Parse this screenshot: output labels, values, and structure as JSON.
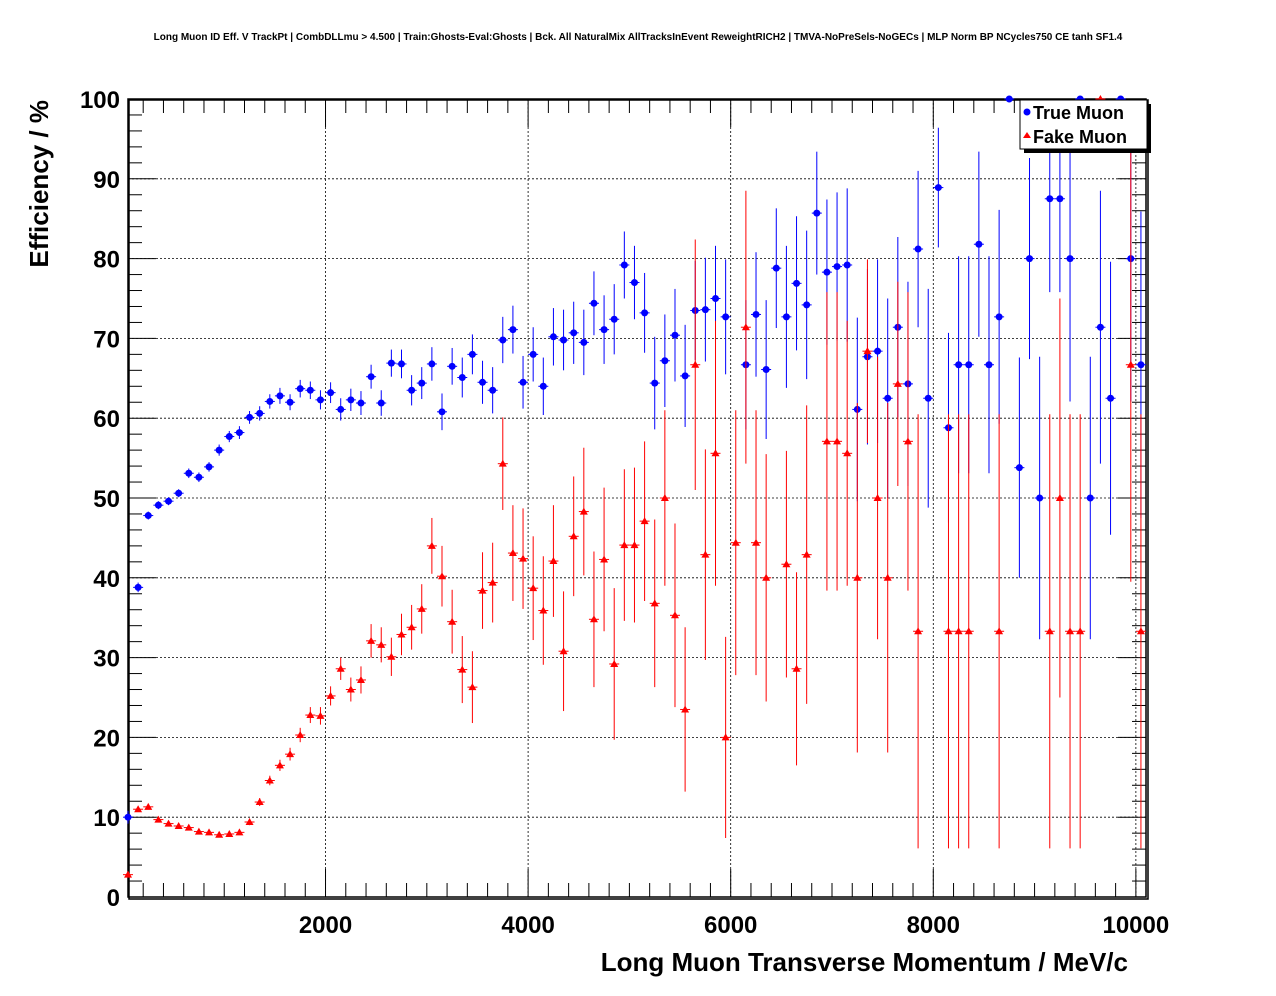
{
  "chart_data": {
    "type": "scatter",
    "title": "Long Muon ID Eff. V TrackPt | CombDLLmu > 4.500 | Train:Ghosts-Eval:Ghosts | Bck. All NaturalMix AllTracksInEvent ReweightRICH2 | TMVA-NoPreSels-NoGECs | MLP Norm BP NCycles750 CE tanh SF1.4",
    "xlabel": "Long Muon Transverse Momentum / MeV/c",
    "ylabel": "Efficiency / %",
    "xlim": [
      50,
      10100
    ],
    "ylim": [
      0,
      100
    ],
    "xticks": [
      2000,
      4000,
      6000,
      8000,
      10000
    ],
    "xtick_labels": [
      "2000",
      "4000",
      "6000",
      "8000",
      "10000"
    ],
    "yticks": [
      0,
      10,
      20,
      30,
      40,
      50,
      60,
      70,
      80,
      90,
      100
    ],
    "ytick_labels": [
      "0",
      "10",
      "20",
      "30",
      "40",
      "50",
      "60",
      "70",
      "80",
      "90",
      "100"
    ],
    "grid": true,
    "legend_position": "top-right",
    "series": [
      {
        "name": "True Muon",
        "color": "#0000ff",
        "marker": "circle",
        "points": [
          [
            50,
            10.0,
            0.8
          ],
          [
            150,
            38.8,
            0.6
          ],
          [
            250,
            47.8,
            0.5
          ],
          [
            350,
            49.1,
            0.5
          ],
          [
            450,
            49.6,
            0.5
          ],
          [
            550,
            50.6,
            0.5
          ],
          [
            650,
            53.1,
            0.6
          ],
          [
            750,
            52.6,
            0.6
          ],
          [
            850,
            53.9,
            0.6
          ],
          [
            950,
            56.0,
            0.7
          ],
          [
            1050,
            57.7,
            0.7
          ],
          [
            1150,
            58.2,
            0.8
          ],
          [
            1250,
            60.1,
            0.8
          ],
          [
            1350,
            60.6,
            0.9
          ],
          [
            1450,
            62.1,
            0.9
          ],
          [
            1550,
            62.8,
            1.0
          ],
          [
            1650,
            62.0,
            1.0
          ],
          [
            1750,
            63.7,
            1.1
          ],
          [
            1850,
            63.5,
            1.1
          ],
          [
            1950,
            62.3,
            1.2
          ],
          [
            2050,
            63.2,
            1.3
          ],
          [
            2150,
            61.1,
            1.4
          ],
          [
            2250,
            62.3,
            1.4
          ],
          [
            2350,
            61.9,
            1.5
          ],
          [
            2450,
            65.2,
            1.5
          ],
          [
            2550,
            61.9,
            1.6
          ],
          [
            2650,
            66.9,
            1.7
          ],
          [
            2750,
            66.8,
            1.8
          ],
          [
            2850,
            63.5,
            1.9
          ],
          [
            2950,
            64.4,
            2.0
          ],
          [
            3050,
            66.8,
            2.1
          ],
          [
            3150,
            60.8,
            2.3
          ],
          [
            3250,
            66.5,
            2.3
          ],
          [
            3350,
            65.1,
            2.5
          ],
          [
            3450,
            68.0,
            2.5
          ],
          [
            3550,
            64.5,
            2.7
          ],
          [
            3650,
            63.5,
            2.9
          ],
          [
            3750,
            69.8,
            2.9
          ],
          [
            3850,
            71.1,
            3.0
          ],
          [
            3950,
            64.5,
            3.3
          ],
          [
            4050,
            68.0,
            3.4
          ],
          [
            4150,
            64.0,
            3.6
          ],
          [
            4250,
            70.2,
            3.6
          ],
          [
            4350,
            69.8,
            3.8
          ],
          [
            4450,
            70.7,
            3.9
          ],
          [
            4550,
            69.5,
            4.1
          ],
          [
            4650,
            74.4,
            4.0
          ],
          [
            4750,
            71.1,
            4.3
          ],
          [
            4850,
            72.4,
            4.4
          ],
          [
            4950,
            79.2,
            4.2
          ],
          [
            5050,
            77.0,
            4.6
          ],
          [
            5150,
            73.2,
            5.0
          ],
          [
            5250,
            64.4,
            5.8
          ],
          [
            5350,
            67.2,
            5.8
          ],
          [
            5450,
            70.4,
            5.8
          ],
          [
            5550,
            65.3,
            6.4
          ],
          [
            5650,
            73.5,
            6.2
          ],
          [
            5750,
            73.6,
            6.5
          ],
          [
            5850,
            75.0,
            6.6
          ],
          [
            5950,
            72.7,
            7.2
          ],
          [
            6150,
            66.7,
            8.1
          ],
          [
            6250,
            73.0,
            7.8
          ],
          [
            6350,
            66.1,
            8.7
          ],
          [
            6450,
            78.8,
            7.5
          ],
          [
            6550,
            72.7,
            8.9
          ],
          [
            6650,
            76.9,
            8.4
          ],
          [
            6750,
            74.2,
            9.3
          ],
          [
            6850,
            85.7,
            7.7
          ],
          [
            6950,
            78.3,
            9.1
          ],
          [
            7050,
            79.0,
            9.3
          ],
          [
            7150,
            79.2,
            9.6
          ],
          [
            7250,
            61.1,
            11.5
          ],
          [
            7350,
            67.7,
            11.0
          ],
          [
            7450,
            68.4,
            11.5
          ],
          [
            7550,
            62.5,
            12.5
          ],
          [
            7650,
            71.4,
            11.3
          ],
          [
            7750,
            64.3,
            12.8
          ],
          [
            7850,
            81.2,
            9.8
          ],
          [
            7950,
            62.5,
            13.7
          ],
          [
            8050,
            88.9,
            7.5
          ],
          [
            8150,
            58.8,
            11.9
          ],
          [
            8250,
            66.7,
            13.6
          ],
          [
            8350,
            66.7,
            13.6
          ],
          [
            8450,
            81.8,
            11.6
          ],
          [
            8550,
            66.7,
            13.6
          ],
          [
            8650,
            72.7,
            13.4
          ],
          [
            8750,
            100.0,
            0.0
          ],
          [
            8850,
            53.8,
            13.8
          ],
          [
            8950,
            80.0,
            12.6
          ],
          [
            9050,
            50.0,
            17.7
          ],
          [
            9150,
            87.5,
            11.7
          ],
          [
            9250,
            87.5,
            11.7
          ],
          [
            9350,
            80.0,
            17.9
          ],
          [
            9450,
            100.0,
            0.0
          ],
          [
            9550,
            50.0,
            17.7
          ],
          [
            9650,
            71.4,
            17.1
          ],
          [
            9750,
            62.5,
            17.1
          ],
          [
            9850,
            100.0,
            0.0
          ],
          [
            9950,
            80.0,
            17.9
          ],
          [
            10050,
            66.7,
            19.2
          ]
        ]
      },
      {
        "name": "Fake Muon",
        "color": "#ff0000",
        "marker": "triangle",
        "points": [
          [
            50,
            2.8,
            0.2
          ],
          [
            150,
            11.0,
            0.3
          ],
          [
            250,
            11.3,
            0.3
          ],
          [
            350,
            9.7,
            0.3
          ],
          [
            450,
            9.2,
            0.3
          ],
          [
            550,
            8.9,
            0.3
          ],
          [
            650,
            8.7,
            0.3
          ],
          [
            750,
            8.2,
            0.3
          ],
          [
            850,
            8.1,
            0.3
          ],
          [
            950,
            7.8,
            0.3
          ],
          [
            1050,
            7.9,
            0.3
          ],
          [
            1150,
            8.1,
            0.3
          ],
          [
            1250,
            9.4,
            0.4
          ],
          [
            1350,
            11.9,
            0.5
          ],
          [
            1450,
            14.6,
            0.6
          ],
          [
            1550,
            16.5,
            0.7
          ],
          [
            1650,
            17.9,
            0.8
          ],
          [
            1750,
            20.3,
            0.9
          ],
          [
            1850,
            22.8,
            1.0
          ],
          [
            1950,
            22.7,
            1.1
          ],
          [
            2050,
            25.2,
            1.2
          ],
          [
            2150,
            28.6,
            1.4
          ],
          [
            2250,
            26.0,
            1.5
          ],
          [
            2350,
            27.2,
            1.7
          ],
          [
            2450,
            32.1,
            2.1
          ],
          [
            2550,
            31.6,
            2.2
          ],
          [
            2650,
            30.1,
            2.4
          ],
          [
            2750,
            32.9,
            2.6
          ],
          [
            2850,
            33.8,
            2.8
          ],
          [
            2950,
            36.1,
            3.1
          ],
          [
            3050,
            44.0,
            3.5
          ],
          [
            3150,
            40.2,
            3.8
          ],
          [
            3250,
            34.5,
            4.0
          ],
          [
            3350,
            28.5,
            4.2
          ],
          [
            3450,
            26.3,
            4.5
          ],
          [
            3550,
            38.4,
            4.8
          ],
          [
            3650,
            39.4,
            5.0
          ],
          [
            3750,
            54.3,
            5.8
          ],
          [
            3850,
            43.1,
            6.0
          ],
          [
            3950,
            42.4,
            6.3
          ],
          [
            4050,
            38.7,
            6.5
          ],
          [
            4150,
            35.9,
            6.8
          ],
          [
            4250,
            42.1,
            7.0
          ],
          [
            4350,
            30.8,
            7.5
          ],
          [
            4450,
            45.2,
            7.5
          ],
          [
            4550,
            48.3,
            8.0
          ],
          [
            4650,
            34.8,
            8.5
          ],
          [
            4750,
            42.3,
            9.0
          ],
          [
            4850,
            29.2,
            9.5
          ],
          [
            4950,
            44.1,
            9.5
          ],
          [
            5050,
            44.1,
            9.7
          ],
          [
            5150,
            47.1,
            10.0
          ],
          [
            5250,
            36.8,
            10.5
          ],
          [
            5350,
            50.0,
            11.0
          ],
          [
            5450,
            35.3,
            11.5
          ],
          [
            5550,
            23.5,
            10.3
          ],
          [
            5650,
            66.7,
            15.7
          ],
          [
            5750,
            42.9,
            13.2
          ],
          [
            5850,
            55.6,
            16.6
          ],
          [
            5950,
            20.0,
            12.6
          ],
          [
            6050,
            44.4,
            16.6
          ],
          [
            6150,
            71.4,
            17.1
          ],
          [
            6250,
            44.4,
            16.6
          ],
          [
            6350,
            40.0,
            15.5
          ],
          [
            6550,
            41.7,
            14.2
          ],
          [
            6650,
            28.6,
            12.1
          ],
          [
            6750,
            42.9,
            18.7
          ],
          [
            6950,
            57.1,
            18.7
          ],
          [
            7050,
            57.1,
            18.7
          ],
          [
            7150,
            55.6,
            16.6
          ],
          [
            7250,
            40.0,
            21.9
          ],
          [
            7350,
            68.4,
            11.5
          ],
          [
            7450,
            50.0,
            17.7
          ],
          [
            7550,
            40.0,
            21.9
          ],
          [
            7650,
            64.3,
            12.8
          ],
          [
            7750,
            57.1,
            18.7
          ],
          [
            7850,
            33.3,
            27.2
          ],
          [
            8150,
            33.3,
            27.2
          ],
          [
            8250,
            33.3,
            27.2
          ],
          [
            8350,
            33.3,
            27.2
          ],
          [
            8650,
            33.3,
            27.2
          ],
          [
            9150,
            33.3,
            27.2
          ],
          [
            9250,
            50.0,
            25.0
          ],
          [
            9350,
            33.3,
            27.2
          ],
          [
            9450,
            33.3,
            27.2
          ],
          [
            9650,
            100.0,
            0.0
          ],
          [
            9950,
            66.7,
            27.2
          ],
          [
            10050,
            33.3,
            27.2
          ]
        ]
      }
    ]
  }
}
